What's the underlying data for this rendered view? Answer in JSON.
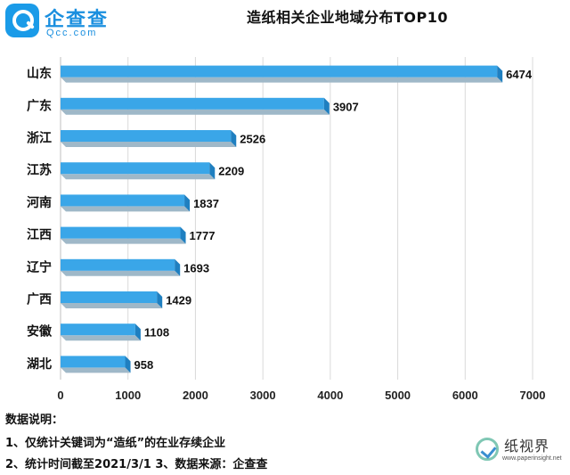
{
  "brand": {
    "name": "企查查",
    "domain": "Qcc.com",
    "color": "#1a8fdf"
  },
  "chart_data": {
    "type": "bar",
    "orientation": "horizontal",
    "title": "造纸相关企业地域分布TOP10",
    "categories": [
      "山东",
      "广东",
      "浙江",
      "江苏",
      "河南",
      "江西",
      "辽宁",
      "广西",
      "安徽",
      "湖北"
    ],
    "values": [
      6474,
      3907,
      2526,
      2209,
      1837,
      1777,
      1693,
      1429,
      1108,
      958
    ],
    "xlim": [
      0,
      7000
    ],
    "xticks": [
      "0",
      "1000",
      "2000",
      "3000",
      "4000",
      "5000",
      "6000",
      "7000"
    ],
    "grid": true,
    "bar_color": "#3aa6e8"
  },
  "notes": {
    "heading": "数据说明：",
    "line1": "1、仅统计关键词为“造纸”的在业存续企业",
    "line2": "2、统计时间截至2021/3/1  3、数据来源：企查查"
  },
  "watermark": {
    "name": "纸视界",
    "url": "www.paperinsight.net"
  }
}
